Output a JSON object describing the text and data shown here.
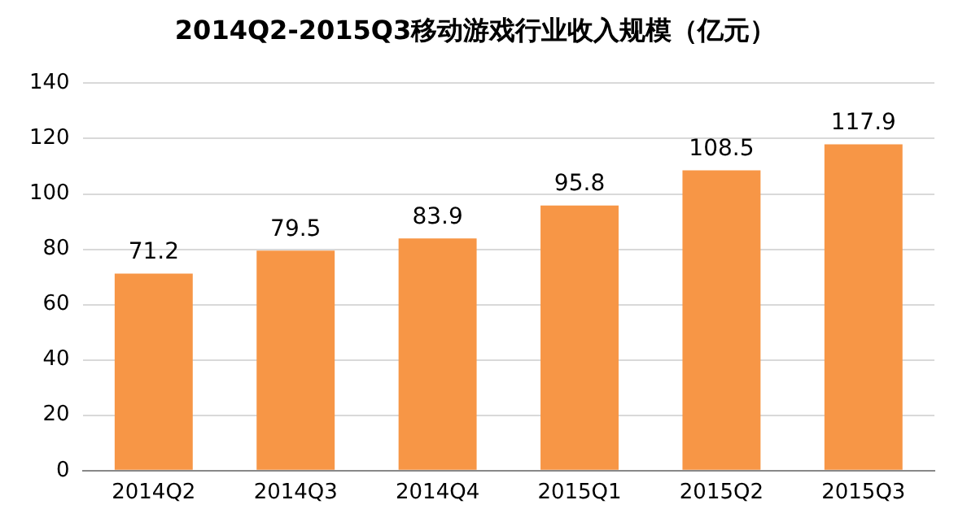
{
  "chart_data": {
    "type": "bar",
    "title": "2014Q2-2015Q3移动游戏行业收入规模（亿元）",
    "categories": [
      "2014Q2",
      "2014Q3",
      "2014Q4",
      "2015Q1",
      "2015Q2",
      "2015Q3"
    ],
    "values": [
      71.2,
      79.5,
      83.9,
      95.8,
      108.5,
      117.9
    ],
    "color": "#f79646",
    "ylim": [
      0,
      140
    ],
    "yticks": [
      0,
      20,
      40,
      60,
      80,
      100,
      120,
      140
    ],
    "grid": "y",
    "data_labels": true
  }
}
